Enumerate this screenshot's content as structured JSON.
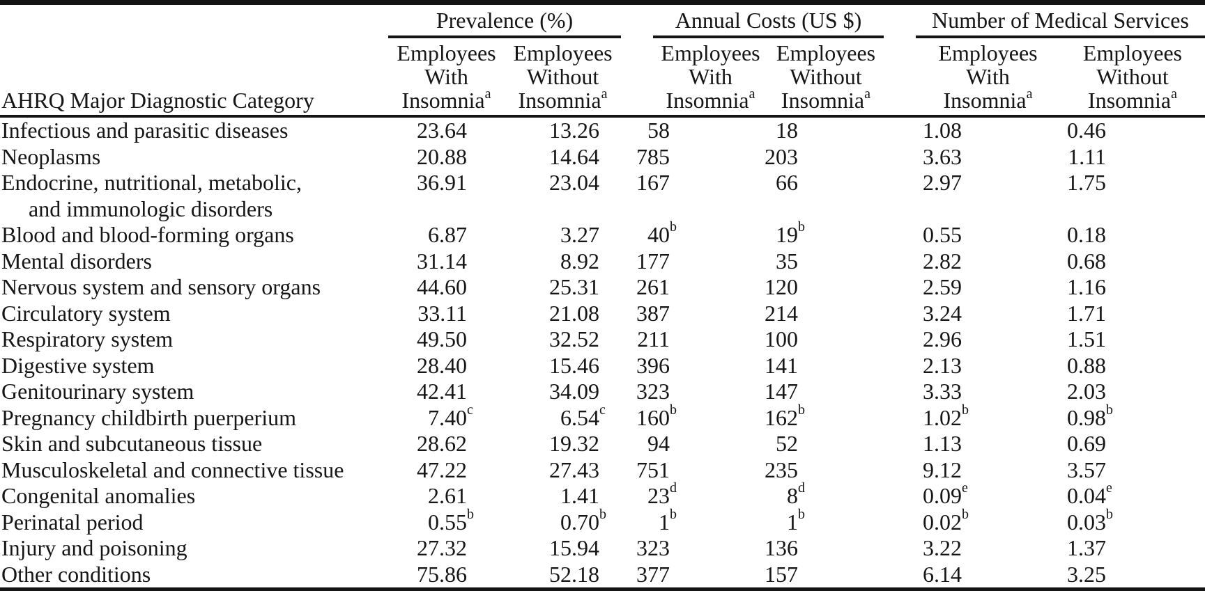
{
  "table": {
    "stub_header": "AHRQ Major Diagnostic Category",
    "groups": [
      {
        "label": "Prevalence (%)"
      },
      {
        "label": "Annual Costs (US $)"
      },
      {
        "label": "Number of Medical Services"
      }
    ],
    "subcolumns": [
      {
        "line1": "Employees",
        "line2": "With",
        "line3": "Insomnia",
        "sup": "a"
      },
      {
        "line1": "Employees",
        "line2": "Without",
        "line3": "Insomnia",
        "sup": "a"
      },
      {
        "line1": "Employees",
        "line2": "With",
        "line3": "Insomnia",
        "sup": "a"
      },
      {
        "line1": "Employees",
        "line2": "Without",
        "line3": "Insomnia",
        "sup": "a"
      },
      {
        "line1": "Employees",
        "line2": "With",
        "line3": "Insomnia",
        "sup": "a"
      },
      {
        "line1": "Employees",
        "line2": "Without",
        "line3": "Insomnia",
        "sup": "a"
      }
    ],
    "rows": [
      {
        "label": "Infectious and parasitic diseases",
        "values": [
          "23.64",
          "13.26",
          "58",
          "18",
          "1.08",
          "0.46"
        ]
      },
      {
        "label": "Neoplasms",
        "values": [
          "20.88",
          "14.64",
          "785",
          "203",
          "3.63",
          "1.11"
        ]
      },
      {
        "label": "Endocrine, nutritional, metabolic,",
        "label2": "and immunologic disorders",
        "values": [
          "36.91",
          "23.04",
          "167",
          "66",
          "2.97",
          "1.75"
        ]
      },
      {
        "label": "Blood and blood-forming organs",
        "values": [
          "6.87",
          "3.27",
          "40^b",
          "19^b",
          "0.55",
          "0.18"
        ]
      },
      {
        "label": "Mental disorders",
        "values": [
          "31.14",
          "8.92",
          "177",
          "35",
          "2.82",
          "0.68"
        ]
      },
      {
        "label": "Nervous system and sensory organs",
        "values": [
          "44.60",
          "25.31",
          "261",
          "120",
          "2.59",
          "1.16"
        ]
      },
      {
        "label": "Circulatory system",
        "values": [
          "33.11",
          "21.08",
          "387",
          "214",
          "3.24",
          "1.71"
        ]
      },
      {
        "label": "Respiratory system",
        "values": [
          "49.50",
          "32.52",
          "211",
          "100",
          "2.96",
          "1.51"
        ]
      },
      {
        "label": "Digestive system",
        "values": [
          "28.40",
          "15.46",
          "396",
          "141",
          "2.13",
          "0.88"
        ]
      },
      {
        "label": "Genitourinary system",
        "values": [
          "42.41",
          "34.09",
          "323",
          "147",
          "3.33",
          "2.03"
        ]
      },
      {
        "label": "Pregnancy childbirth puerperium",
        "values": [
          "7.40^c",
          "6.54^c",
          "160^b",
          "162^b",
          "1.02^b",
          "0.98^b"
        ]
      },
      {
        "label": "Skin and subcutaneous tissue",
        "values": [
          "28.62",
          "19.32",
          "94",
          "52",
          "1.13",
          "0.69"
        ]
      },
      {
        "label": "Musculoskeletal and connective tissue",
        "values": [
          "47.22",
          "27.43",
          "751",
          "235",
          "9.12",
          "3.57"
        ]
      },
      {
        "label": "Congenital anomalies",
        "values": [
          "2.61",
          "1.41",
          "23^d",
          "8^d",
          "0.09^e",
          "0.04^e"
        ]
      },
      {
        "label": "Perinatal period",
        "values": [
          "0.55^b",
          "0.70^b",
          "1^b",
          "1^b",
          "0.02^b",
          "0.03^b"
        ]
      },
      {
        "label": "Injury and poisoning",
        "values": [
          "27.32",
          "15.94",
          "323",
          "136",
          "3.22",
          "1.37"
        ]
      },
      {
        "label": "Other conditions",
        "values": [
          "75.86",
          "52.18",
          "377",
          "157",
          "6.14",
          "3.25"
        ]
      }
    ]
  }
}
